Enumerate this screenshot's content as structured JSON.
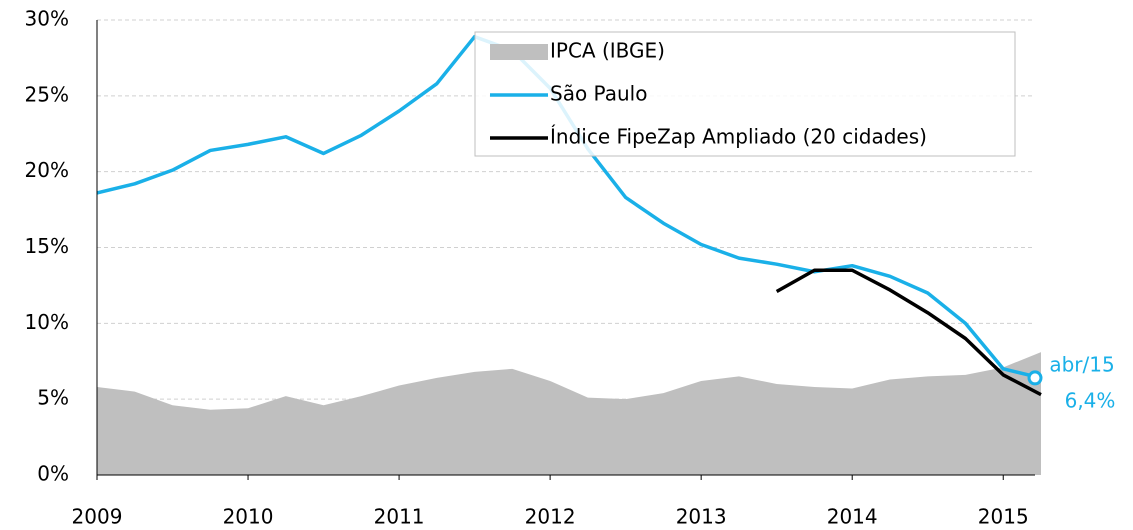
{
  "chart_data": {
    "type": "line",
    "x": [
      2009,
      2009.25,
      2009.5,
      2009.75,
      2010,
      2010.25,
      2010.5,
      2010.75,
      2011,
      2011.25,
      2011.5,
      2011.75,
      2012,
      2012.25,
      2012.5,
      2012.75,
      2013,
      2013.25,
      2013.5,
      2013.75,
      2014,
      2014.25,
      2014.5,
      2014.75,
      2015,
      2015.25
    ],
    "series": [
      {
        "name": "IPCA (IBGE)",
        "color": "#bfbfbf",
        "kind": "area",
        "values": [
          5.8,
          5.5,
          4.6,
          4.3,
          4.4,
          5.2,
          4.6,
          5.2,
          5.9,
          6.4,
          6.8,
          7.0,
          6.2,
          5.1,
          5.0,
          5.4,
          6.2,
          6.5,
          6.0,
          5.8,
          5.7,
          6.3,
          6.5,
          6.6,
          7.1,
          8.1
        ]
      },
      {
        "name": "São Paulo",
        "color": "#1ab0e8",
        "kind": "line",
        "values": [
          18.6,
          19.2,
          20.1,
          21.4,
          21.8,
          22.3,
          21.2,
          22.4,
          24.0,
          25.8,
          28.9,
          28.0,
          25.5,
          21.5,
          18.3,
          16.6,
          15.2,
          14.3,
          13.9,
          13.4,
          13.8,
          13.1,
          12.0,
          10.0,
          7.0,
          6.4
        ]
      },
      {
        "name": "Índice FipeZap Ampliado (20 cidades)",
        "color": "#000000",
        "kind": "line",
        "values": [
          null,
          null,
          null,
          null,
          null,
          null,
          null,
          null,
          null,
          null,
          null,
          null,
          null,
          null,
          null,
          null,
          null,
          null,
          12.1,
          13.5,
          13.5,
          12.2,
          10.7,
          9.0,
          6.6,
          5.3
        ]
      }
    ],
    "annotations": [
      "abr/15",
      "6,4%"
    ],
    "xlim": [
      2009,
      2015.25
    ],
    "xticks": [
      2009,
      2010,
      2011,
      2012,
      2013,
      2014,
      2015
    ],
    "ylim": [
      0,
      30
    ],
    "yticks": [
      {
        "value": 0,
        "label": "0%"
      },
      {
        "value": 5,
        "label": "5%"
      },
      {
        "value": 10,
        "label": "10%"
      },
      {
        "value": 15,
        "label": "15%"
      },
      {
        "value": 20,
        "label": "20%"
      },
      {
        "value": 25,
        "label": "25%"
      },
      {
        "value": 30,
        "label": "30%"
      }
    ],
    "grid": true
  }
}
